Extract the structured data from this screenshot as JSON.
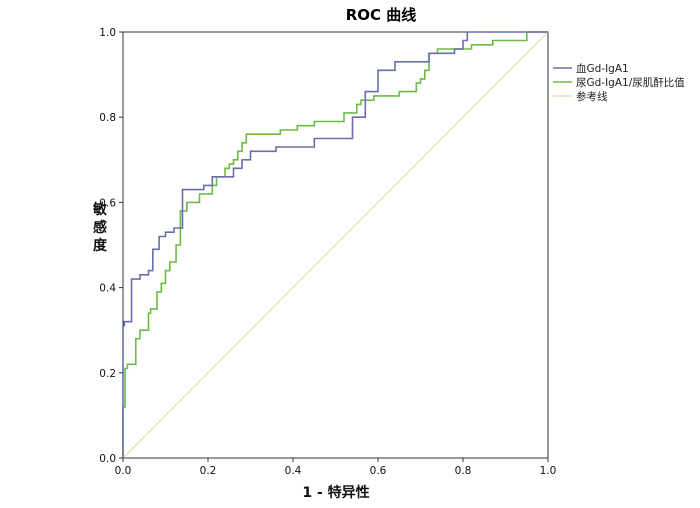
{
  "chart_data": {
    "type": "line",
    "title": "ROC 曲线",
    "xlabel": "1 - 特异性",
    "ylabel": "敏感度",
    "xlim": [
      0,
      1
    ],
    "ylim": [
      0,
      1
    ],
    "xticks": [
      "0.0",
      "0.2",
      "0.4",
      "0.6",
      "0.8",
      "1.0"
    ],
    "yticks": [
      "0.0",
      "0.2",
      "0.4",
      "0.6",
      "0.8",
      "1.0"
    ],
    "grid": false,
    "legend_position": "right",
    "series": [
      {
        "name": "血Gd-IgA1",
        "color": "#6a6fa8",
        "x": [
          0,
          0,
          0.003,
          0.003,
          0.02,
          0.02,
          0.04,
          0.04,
          0.06,
          0.06,
          0.07,
          0.07,
          0.085,
          0.085,
          0.1,
          0.1,
          0.12,
          0.12,
          0.14,
          0.14,
          0.19,
          0.19,
          0.21,
          0.21,
          0.26,
          0.26,
          0.28,
          0.28,
          0.3,
          0.3,
          0.36,
          0.36,
          0.45,
          0.45,
          0.54,
          0.54,
          0.57,
          0.57,
          0.6,
          0.6,
          0.64,
          0.64,
          0.72,
          0.72,
          0.78,
          0.78,
          0.8,
          0.8,
          0.81,
          0.81,
          1.0
        ],
        "y": [
          0,
          0.31,
          0.31,
          0.32,
          0.32,
          0.42,
          0.42,
          0.43,
          0.43,
          0.44,
          0.44,
          0.49,
          0.49,
          0.52,
          0.52,
          0.53,
          0.53,
          0.54,
          0.54,
          0.63,
          0.63,
          0.64,
          0.64,
          0.66,
          0.66,
          0.68,
          0.68,
          0.7,
          0.7,
          0.72,
          0.72,
          0.73,
          0.73,
          0.75,
          0.75,
          0.8,
          0.8,
          0.86,
          0.86,
          0.91,
          0.91,
          0.93,
          0.93,
          0.95,
          0.95,
          0.96,
          0.96,
          0.98,
          0.98,
          1.0,
          1.0
        ]
      },
      {
        "name": "尿Gd-IgA1/尿肌酐比值",
        "color": "#6dbb45",
        "x": [
          0,
          0,
          0.005,
          0.005,
          0.01,
          0.01,
          0.03,
          0.03,
          0.04,
          0.04,
          0.06,
          0.06,
          0.065,
          0.065,
          0.08,
          0.08,
          0.09,
          0.09,
          0.1,
          0.1,
          0.11,
          0.11,
          0.125,
          0.125,
          0.135,
          0.135,
          0.15,
          0.15,
          0.18,
          0.18,
          0.21,
          0.21,
          0.22,
          0.22,
          0.24,
          0.24,
          0.25,
          0.25,
          0.26,
          0.26,
          0.27,
          0.27,
          0.28,
          0.28,
          0.29,
          0.29,
          0.33,
          0.33,
          0.37,
          0.37,
          0.41,
          0.41,
          0.45,
          0.45,
          0.52,
          0.52,
          0.55,
          0.55,
          0.56,
          0.56,
          0.57,
          0.57,
          0.59,
          0.59,
          0.65,
          0.65,
          0.69,
          0.69,
          0.7,
          0.7,
          0.71,
          0.71,
          0.72,
          0.72,
          0.74,
          0.74,
          0.82,
          0.82,
          0.87,
          0.87,
          0.95,
          0.95,
          1.0
        ],
        "y": [
          0,
          0.12,
          0.12,
          0.21,
          0.21,
          0.22,
          0.22,
          0.28,
          0.28,
          0.3,
          0.3,
          0.34,
          0.34,
          0.35,
          0.35,
          0.39,
          0.39,
          0.41,
          0.41,
          0.44,
          0.44,
          0.46,
          0.46,
          0.5,
          0.5,
          0.58,
          0.58,
          0.6,
          0.6,
          0.62,
          0.62,
          0.64,
          0.64,
          0.66,
          0.66,
          0.68,
          0.68,
          0.69,
          0.69,
          0.7,
          0.7,
          0.72,
          0.72,
          0.74,
          0.74,
          0.76,
          0.76,
          0.76,
          0.76,
          0.77,
          0.77,
          0.78,
          0.78,
          0.79,
          0.79,
          0.81,
          0.81,
          0.83,
          0.83,
          0.84,
          0.84,
          0.84,
          0.84,
          0.85,
          0.85,
          0.86,
          0.86,
          0.88,
          0.88,
          0.89,
          0.89,
          0.91,
          0.91,
          0.95,
          0.95,
          0.96,
          0.96,
          0.97,
          0.97,
          0.98,
          0.98,
          1.0,
          1.0
        ]
      },
      {
        "name": "参考线",
        "color": "#ecdcbe",
        "x": [
          0,
          1
        ],
        "y": [
          0,
          1
        ]
      }
    ]
  }
}
